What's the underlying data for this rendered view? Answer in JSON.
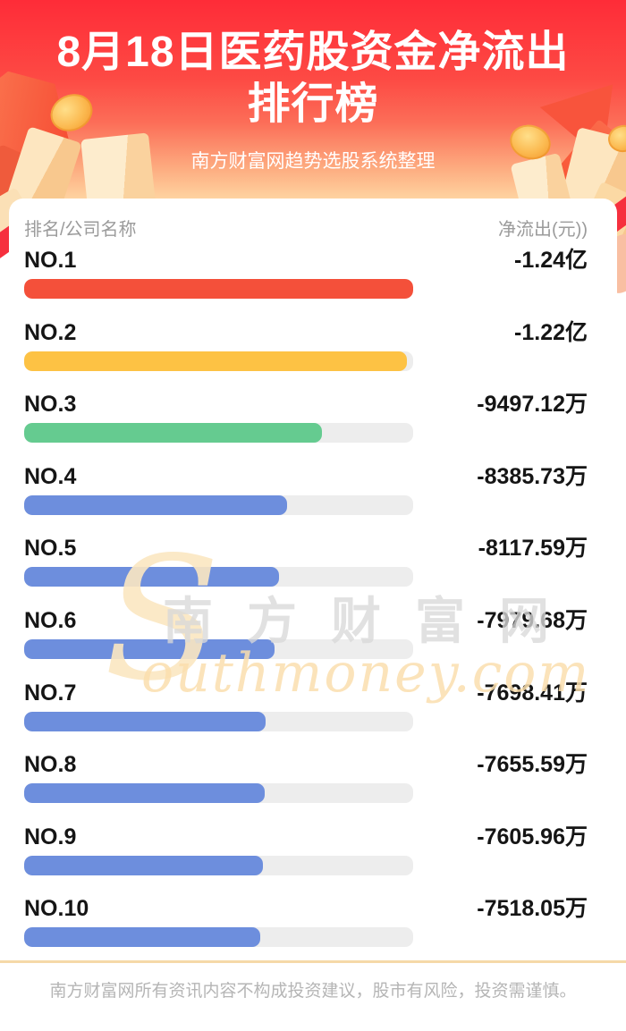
{
  "header": {
    "title_line1": "8月18日医药股资金净流出",
    "title_line2": "排行榜",
    "subtitle": "南方财富网趋势选股系统整理"
  },
  "table": {
    "col_left": "排名/公司名称",
    "col_right": "净流出(元))"
  },
  "chart_data": {
    "type": "bar",
    "orientation": "horizontal",
    "title": "8月18日医药股资金净流出排行榜",
    "value_unit": "万元",
    "xlim_wan": [
      0,
      12400
    ],
    "track_color": "#ededed",
    "rows": [
      {
        "rank": "NO.1",
        "value": "-1.24亿",
        "value_wan": -12400,
        "color": "#f4503a"
      },
      {
        "rank": "NO.2",
        "value": "-1.22亿",
        "value_wan": -12200,
        "color": "#fdc244"
      },
      {
        "rank": "NO.3",
        "value": "-9497.12万",
        "value_wan": -9497.12,
        "color": "#65cb90"
      },
      {
        "rank": "NO.4",
        "value": "-8385.73万",
        "value_wan": -8385.73,
        "color": "#6d8edd"
      },
      {
        "rank": "NO.5",
        "value": "-8117.59万",
        "value_wan": -8117.59,
        "color": "#6d8edd"
      },
      {
        "rank": "NO.6",
        "value": "-7979.68万",
        "value_wan": -7979.68,
        "color": "#6d8edd"
      },
      {
        "rank": "NO.7",
        "value": "-7698.41万",
        "value_wan": -7698.41,
        "color": "#6d8edd"
      },
      {
        "rank": "NO.8",
        "value": "-7655.59万",
        "value_wan": -7655.59,
        "color": "#6d8edd"
      },
      {
        "rank": "NO.9",
        "value": "-7605.96万",
        "value_wan": -7605.96,
        "color": "#6d8edd"
      },
      {
        "rank": "NO.10",
        "value": "-7518.05万",
        "value_wan": -7518.05,
        "color": "#6d8edd"
      }
    ]
  },
  "watermark": {
    "initial": "S",
    "cn": "南方财富网",
    "en": "outhmoney.com"
  },
  "footer": {
    "disclaimer": "南方财富网所有资讯内容不构成投资建议，股市有风险，投资需谨慎。"
  },
  "colors": {
    "hero_top": "#fe2c38",
    "hero_bottom": "#fed3a0",
    "bar_red": "#f4503a",
    "bar_yellow": "#fdc244",
    "bar_green": "#65cb90",
    "bar_blue": "#6d8edd",
    "bar_track": "#ededed",
    "divider": "#f5d9a8",
    "header_label_gray": "#9b9b9b",
    "footer_gray": "#b5b5b5"
  }
}
